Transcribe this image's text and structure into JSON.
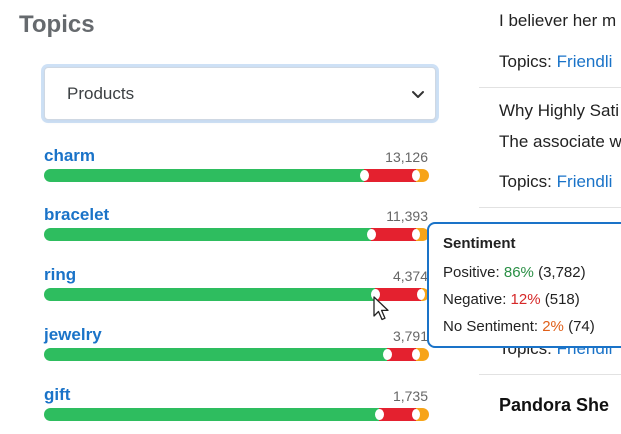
{
  "panel": {
    "title": "Topics",
    "select": {
      "value": "Products",
      "icon": "chevron-down-icon"
    }
  },
  "topics": [
    {
      "name": "charm",
      "count": "13,126",
      "positive": 0.83,
      "negative": 0.135,
      "none": 0.035
    },
    {
      "name": "bracelet",
      "count": "11,393",
      "positive": 0.85,
      "negative": 0.115,
      "none": 0.035
    },
    {
      "name": "ring",
      "count": "4,374",
      "positive": 0.86,
      "negative": 0.12,
      "none": 0.02
    },
    {
      "name": "jewelry",
      "count": "3,791",
      "positive": 0.89,
      "negative": 0.075,
      "none": 0.035
    },
    {
      "name": "gift",
      "count": "1,735",
      "positive": 0.87,
      "negative": 0.095,
      "none": 0.035
    }
  ],
  "tooltip": {
    "title": "Sentiment",
    "positive_label": "Positive:",
    "positive_pct": "86%",
    "positive_count": "(3,782)",
    "negative_label": "Negative:",
    "negative_pct": "12%",
    "negative_count": "(518)",
    "none_label": "No Sentiment:",
    "none_pct": "2%",
    "none_count": "(74)"
  },
  "right": {
    "line1": "I believer her m",
    "topics_label": "Topics:",
    "topics_link1": "Friendli",
    "line2": "Why Highly Sati",
    "line3": "The associate w",
    "topics_link2": "Friendli",
    "topics_link3": "Friendli",
    "heading": "Pandora She"
  },
  "colors": {
    "positive": "#2ebd5f",
    "negative": "#e4212f",
    "no_sentiment": "#f7a419",
    "link": "#1a73c8"
  }
}
